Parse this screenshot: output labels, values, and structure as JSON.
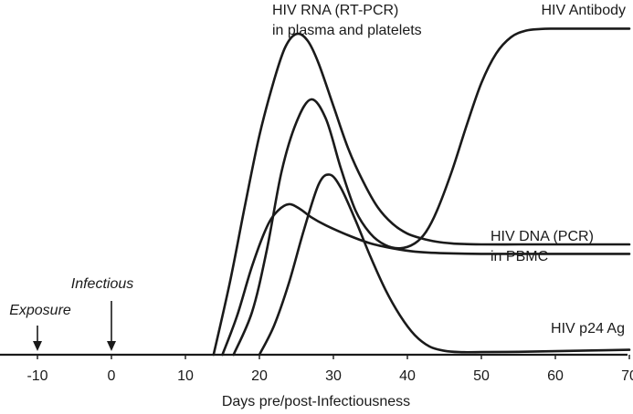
{
  "chart_data": {
    "type": "line",
    "title": "",
    "xlabel": "Days pre/post-Infectiousness",
    "ylabel": "",
    "x_ticks": [
      -10,
      0,
      10,
      20,
      30,
      40,
      50,
      60,
      70
    ],
    "tick_labels": [
      "-10",
      "0",
      "10",
      "20",
      "30",
      "40",
      "50",
      "60",
      "70"
    ],
    "xlim": [
      -15,
      70
    ],
    "ylim": [
      0,
      100
    ],
    "grid": false,
    "legend": "none",
    "series": [
      {
        "name": "HIV RNA (RT-PCR)",
        "label_lines": [
          "HIV RNA (RT-PCR)",
          "in plasma and platelets"
        ],
        "x": [
          13.8,
          16,
          18,
          20,
          22,
          23.5,
          25,
          26.5,
          28,
          30,
          32,
          34,
          36,
          38,
          40,
          42,
          44,
          46,
          48,
          50,
          55,
          60,
          65,
          70
        ],
        "y": [
          0,
          22,
          45,
          67,
          84,
          94,
          98,
          96,
          89,
          76,
          63,
          53,
          45,
          40,
          37,
          35.5,
          34.5,
          34,
          33.8,
          33.7,
          33.7,
          33.7,
          33.7,
          33.7
        ]
      },
      {
        "name": "HIV Antibody",
        "label_lines": [
          "HIV Antibody"
        ],
        "x": [
          16.5,
          19,
          21,
          23,
          25,
          27,
          29,
          31,
          33,
          35,
          37,
          39,
          41,
          42.5,
          44,
          46,
          48,
          50,
          52,
          54,
          56,
          58,
          60,
          65,
          70
        ],
        "y": [
          0,
          13,
          32,
          56,
          71,
          78,
          72,
          57,
          44,
          37,
          33.5,
          32.5,
          34,
          37.5,
          44,
          56,
          70,
          83,
          92,
          97,
          99,
          99.5,
          99.6,
          99.6,
          99.6
        ]
      },
      {
        "name": "HIV DNA (PCR)",
        "label_lines": [
          "HIV DNA (PCR)",
          "in PBMC"
        ],
        "x": [
          15,
          17,
          19,
          21,
          22.5,
          24,
          25.5,
          27,
          29,
          32,
          35,
          38,
          41,
          45,
          50,
          55,
          60,
          65,
          70
        ],
        "y": [
          0,
          12,
          27,
          39,
          44,
          46,
          44.5,
          42,
          39.5,
          36.5,
          34,
          32.5,
          31.5,
          31,
          30.8,
          30.8,
          30.8,
          30.8,
          30.8
        ]
      },
      {
        "name": "HIV p24 Ag",
        "label_lines": [
          "HIV p24 Ag"
        ],
        "x": [
          20,
          22,
          24,
          26,
          28,
          29.5,
          31,
          33,
          35,
          37,
          39,
          41,
          43,
          45,
          47,
          50,
          55,
          60,
          65,
          70
        ],
        "y": [
          0,
          9,
          22,
          38,
          52,
          55,
          51,
          41,
          30,
          20,
          12,
          6,
          2.5,
          1.2,
          0.8,
          0.8,
          0.9,
          1.1,
          1.3,
          1.5
        ]
      }
    ],
    "annotations": [
      {
        "text": "Exposure",
        "x": -10
      },
      {
        "text": "Infectious",
        "x": 0
      }
    ]
  }
}
